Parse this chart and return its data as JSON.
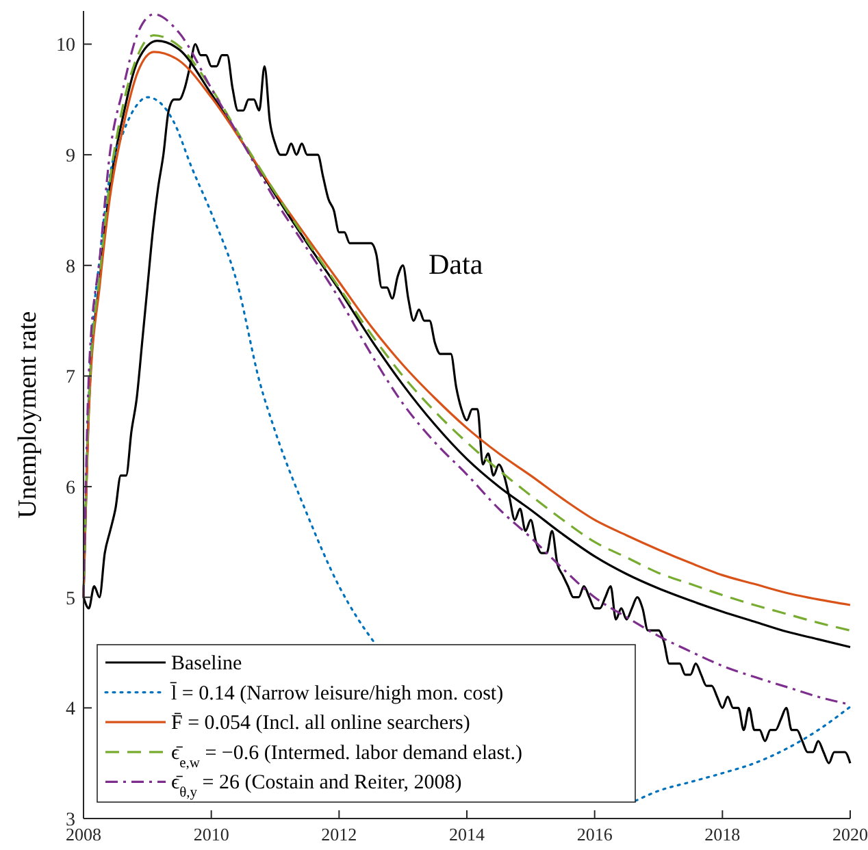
{
  "chart_data": {
    "type": "line",
    "ylabel": "Unemployment rate",
    "xlim": [
      2008,
      2020
    ],
    "ylim": [
      3,
      10.3
    ],
    "xticks": [
      2008,
      2010,
      2012,
      2014,
      2016,
      2018,
      2020
    ],
    "yticks": [
      3,
      4,
      5,
      6,
      7,
      8,
      9,
      10
    ],
    "grid": false,
    "legend": "bottom left",
    "marker": "none",
    "x": [
      2008,
      2008.083,
      2008.167,
      2008.25,
      2008.333,
      2008.417,
      2008.5,
      2008.583,
      2008.667,
      2008.75,
      2008.833,
      2008.917,
      2009,
      2009.083,
      2009.167,
      2009.25,
      2009.333,
      2009.417,
      2009.5,
      2009.583,
      2009.667,
      2009.75,
      2009.833,
      2009.917,
      2010,
      2010.083,
      2010.167,
      2010.25,
      2010.333,
      2010.417,
      2010.5,
      2010.583,
      2010.667,
      2010.75,
      2010.833,
      2010.917,
      2011,
      2011.083,
      2011.167,
      2011.25,
      2011.333,
      2011.417,
      2011.5,
      2011.583,
      2011.667,
      2011.75,
      2011.833,
      2011.917,
      2012,
      2012.083,
      2012.167,
      2012.25,
      2012.333,
      2012.417,
      2012.5,
      2012.583,
      2012.667,
      2012.75,
      2012.833,
      2012.917,
      2013,
      2013.083,
      2013.167,
      2013.25,
      2013.333,
      2013.417,
      2013.5,
      2013.583,
      2013.667,
      2013.75,
      2013.833,
      2013.917,
      2014,
      2014.083,
      2014.167,
      2014.25,
      2014.333,
      2014.417,
      2014.5,
      2014.583,
      2014.667,
      2014.75,
      2014.833,
      2014.917,
      2015,
      2015.083,
      2015.167,
      2015.25,
      2015.333,
      2015.417,
      2015.5,
      2015.583,
      2015.667,
      2015.75,
      2015.833,
      2015.917,
      2016,
      2016.083,
      2016.167,
      2016.25,
      2016.333,
      2016.417,
      2016.5,
      2016.583,
      2016.667,
      2016.75,
      2016.833,
      2016.917,
      2017,
      2017.083,
      2017.167,
      2017.25,
      2017.333,
      2017.417,
      2017.5,
      2017.583,
      2017.667,
      2017.75,
      2017.833,
      2017.917,
      2018,
      2018.083,
      2018.167,
      2018.25,
      2018.333,
      2018.417,
      2018.5,
      2018.583,
      2018.667,
      2018.75,
      2018.833,
      2018.917,
      2019,
      2019.083,
      2019.167,
      2019.25,
      2019.333,
      2019.417,
      2019.5,
      2019.583,
      2019.667,
      2019.75,
      2019.833,
      2019.917,
      2020
    ],
    "series": [
      {
        "color": "#000000",
        "line_style": "solid",
        "values": [
          5.0,
          4.9,
          5.1,
          5.0,
          5.4,
          5.6,
          5.8,
          6.1,
          6.1,
          6.5,
          6.8,
          7.3,
          7.8,
          8.3,
          8.7,
          9.0,
          9.4,
          9.5,
          9.5,
          9.6,
          9.8,
          10.0,
          9.9,
          9.9,
          9.8,
          9.8,
          9.9,
          9.9,
          9.6,
          9.4,
          9.4,
          9.5,
          9.5,
          9.4,
          9.8,
          9.3,
          9.1,
          9.0,
          9.0,
          9.1,
          9.0,
          9.1,
          9.0,
          9.0,
          9.0,
          8.8,
          8.6,
          8.5,
          8.3,
          8.3,
          8.2,
          8.2,
          8.2,
          8.2,
          8.2,
          8.1,
          7.8,
          7.8,
          7.7,
          7.9,
          8.0,
          7.7,
          7.5,
          7.6,
          7.5,
          7.5,
          7.3,
          7.2,
          7.2,
          7.2,
          6.9,
          6.7,
          6.6,
          6.7,
          6.7,
          6.2,
          6.3,
          6.1,
          6.2,
          6.1,
          5.9,
          5.7,
          5.8,
          5.6,
          5.7,
          5.5,
          5.4,
          5.4,
          5.6,
          5.3,
          5.2,
          5.1,
          5.0,
          5.0,
          5.1,
          5.0,
          4.9,
          4.9,
          5.0,
          5.1,
          4.8,
          4.9,
          4.8,
          4.9,
          5.0,
          4.9,
          4.7,
          4.7,
          4.7,
          4.6,
          4.4,
          4.4,
          4.4,
          4.3,
          4.3,
          4.4,
          4.3,
          4.2,
          4.2,
          4.1,
          4.0,
          4.1,
          4.0,
          4.0,
          3.8,
          4.0,
          3.8,
          3.8,
          3.7,
          3.8,
          3.8,
          3.9,
          4.0,
          3.8,
          3.8,
          3.7,
          3.6,
          3.6,
          3.7,
          3.6,
          3.5,
          3.6,
          3.6,
          3.6,
          3.5
        ]
      },
      {
        "name": "Baseline",
        "color": "#000000",
        "line_style": "solid",
        "x": [
          2008,
          2008.09,
          2008.26,
          2008.41,
          2008.62,
          2008.85,
          2009.15,
          2009.5,
          2010,
          2010.5,
          2011,
          2011.5,
          2012,
          2012.5,
          2013,
          2013.5,
          2014,
          2014.5,
          2015,
          2015.5,
          2016,
          2016.5,
          2017,
          2017.5,
          2018,
          2018.5,
          2019,
          2019.5,
          2020
        ],
        "values": [
          5.0,
          6.8,
          7.9,
          8.7,
          9.35,
          9.85,
          10.03,
          9.95,
          9.55,
          9.1,
          8.64,
          8.2,
          7.78,
          7.33,
          6.92,
          6.56,
          6.25,
          6.0,
          5.79,
          5.57,
          5.37,
          5.21,
          5.08,
          4.97,
          4.87,
          4.78,
          4.69,
          4.62,
          4.55
        ]
      },
      {
        "name": "l̄ = 0.14 (Narrow leisure/high mon. cost)",
        "color": "#0072bd",
        "line_style": "dotted",
        "x": [
          2008,
          2008.09,
          2008.26,
          2008.41,
          2008.62,
          2008.8,
          2009,
          2009.2,
          2009.41,
          2009.69,
          2010.01,
          2010.4,
          2010.76,
          2011,
          2011.5,
          2012,
          2012.3,
          2012.54,
          2013,
          2014,
          2015,
          2016,
          2016.64,
          2017,
          2017.5,
          2018,
          2018.5,
          2019,
          2019.5,
          2020
        ],
        "values": [
          5.0,
          6.9,
          8.1,
          8.8,
          9.2,
          9.42,
          9.52,
          9.47,
          9.3,
          8.89,
          8.46,
          7.85,
          6.94,
          6.5,
          5.75,
          5.1,
          4.8,
          4.6,
          null,
          null,
          null,
          null,
          3.16,
          3.25,
          3.33,
          3.41,
          3.5,
          3.63,
          3.8,
          4.01
        ]
      },
      {
        "name": "F̄ = 0.054 (Incl. all online searchers)",
        "color": "#d95319",
        "line_style": "solid",
        "x": [
          2008,
          2008.09,
          2008.26,
          2008.41,
          2008.62,
          2008.85,
          2009.1,
          2009.5,
          2010,
          2010.5,
          2011,
          2011.5,
          2012,
          2012.5,
          2013,
          2013.5,
          2014,
          2014.5,
          2015,
          2015.5,
          2016,
          2016.5,
          2017,
          2017.5,
          2018,
          2018.5,
          2019,
          2019.5,
          2020
        ],
        "values": [
          5.0,
          6.75,
          7.85,
          8.6,
          9.25,
          9.75,
          9.93,
          9.85,
          9.52,
          9.1,
          8.66,
          8.25,
          7.85,
          7.45,
          7.1,
          6.8,
          6.53,
          6.3,
          6.1,
          5.89,
          5.7,
          5.56,
          5.43,
          5.31,
          5.2,
          5.12,
          5.04,
          4.98,
          4.93
        ]
      },
      {
        "name": "ϵ̄$_{e,w}$ = −0.6 (Intermed. labor demand elast.)",
        "color": "#77ac30",
        "line_style": "dashed",
        "x": [
          2008,
          2008.09,
          2008.26,
          2008.41,
          2008.62,
          2008.85,
          2009.1,
          2009.5,
          2010,
          2010.5,
          2011,
          2011.5,
          2012,
          2012.5,
          2013,
          2013.5,
          2014,
          2014.5,
          2015,
          2015.5,
          2016,
          2016.5,
          2017,
          2017.5,
          2018,
          2018.5,
          2019,
          2019.5,
          2020
        ],
        "values": [
          5.0,
          6.85,
          7.95,
          8.75,
          9.45,
          9.9,
          10.08,
          9.98,
          9.6,
          9.12,
          8.66,
          8.22,
          7.8,
          7.38,
          7.0,
          6.68,
          6.4,
          6.15,
          5.92,
          5.7,
          5.5,
          5.36,
          5.22,
          5.12,
          5.02,
          4.93,
          4.85,
          4.77,
          4.7
        ]
      },
      {
        "name": "ϵ̄$_{θ,y}$ = 26 (Costain and Reiter, 2008)",
        "color": "#7e2f8e",
        "line_style": "dashdot",
        "x": [
          2008,
          2008.09,
          2008.26,
          2008.41,
          2008.62,
          2008.85,
          2009.1,
          2009.5,
          2010,
          2010.5,
          2011,
          2011.5,
          2012,
          2012.5,
          2013,
          2013.5,
          2014,
          2014.5,
          2015,
          2015.5,
          2016,
          2016.5,
          2017,
          2017.5,
          2018,
          2018.5,
          2019,
          2019.5,
          2020
        ],
        "values": [
          5.0,
          7.1,
          8.1,
          9.0,
          9.6,
          10.1,
          10.27,
          10.1,
          9.6,
          9.1,
          8.59,
          8.15,
          7.7,
          7.2,
          6.75,
          6.4,
          6.11,
          5.8,
          5.54,
          5.26,
          5.0,
          4.82,
          4.65,
          4.51,
          4.38,
          4.28,
          4.19,
          4.1,
          4.03
        ]
      }
    ],
    "annotations": [
      "Data"
    ]
  }
}
